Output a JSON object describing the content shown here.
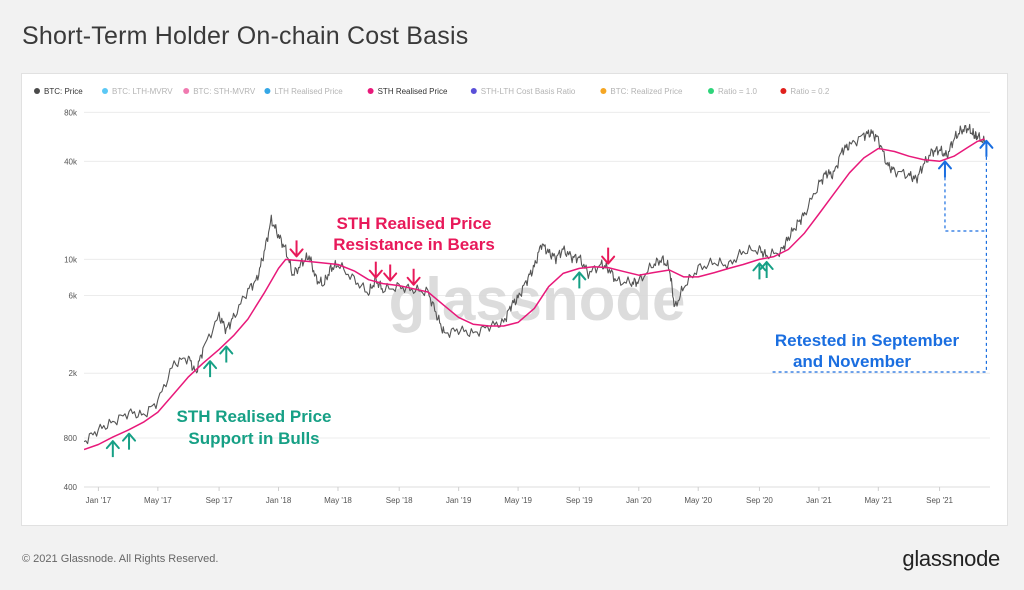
{
  "title": "Short-Term Holder On-chain Cost Basis",
  "footer": {
    "copyright": "© 2021 Glassnode. All Rights Reserved.",
    "logo": "glassnode"
  },
  "watermark": "glassnode",
  "chart_data": {
    "type": "line",
    "title": "Short-Term Holder On-chain Cost Basis",
    "y_scale": "log",
    "ylim": [
      400,
      90000
    ],
    "y_ticks": [
      {
        "value": 400,
        "label": "400"
      },
      {
        "value": 800,
        "label": "800"
      },
      {
        "value": 2000,
        "label": "2k"
      },
      {
        "value": 6000,
        "label": "6k"
      },
      {
        "value": 10000,
        "label": "10k"
      },
      {
        "value": 40000,
        "label": "40k"
      },
      {
        "value": 80000,
        "label": "80k"
      }
    ],
    "xlim": [
      2016.92,
      2021.95
    ],
    "x_ticks": [
      {
        "value": 2017.0,
        "label": "Jan '17"
      },
      {
        "value": 2017.33,
        "label": "May '17"
      },
      {
        "value": 2017.67,
        "label": "Sep '17"
      },
      {
        "value": 2018.0,
        "label": "Jan '18"
      },
      {
        "value": 2018.33,
        "label": "May '18"
      },
      {
        "value": 2018.67,
        "label": "Sep '18"
      },
      {
        "value": 2019.0,
        "label": "Jan '19"
      },
      {
        "value": 2019.33,
        "label": "May '19"
      },
      {
        "value": 2019.67,
        "label": "Sep '19"
      },
      {
        "value": 2020.0,
        "label": "Jan '20"
      },
      {
        "value": 2020.33,
        "label": "May '20"
      },
      {
        "value": 2020.67,
        "label": "Sep '20"
      },
      {
        "value": 2021.0,
        "label": "Jan '21"
      },
      {
        "value": 2021.33,
        "label": "May '21"
      },
      {
        "value": 2021.67,
        "label": "Sep '21"
      }
    ],
    "legend": [
      {
        "label": "BTC: Price",
        "color": "#4a4a4a",
        "active": true
      },
      {
        "label": "BTC: LTH-MVRV",
        "color": "#5bc8f5",
        "active": false
      },
      {
        "label": "BTC: STH-MVRV",
        "color": "#f07ab0",
        "active": false
      },
      {
        "label": "LTH Realised Price",
        "color": "#35a7e6",
        "active": false
      },
      {
        "label": "STH Realised Price",
        "color": "#e8197a",
        "active": true
      },
      {
        "label": "STH-LTH Cost Basis Ratio",
        "color": "#5a4fd8",
        "active": false
      },
      {
        "label": "BTC: Realized Price",
        "color": "#f5a623",
        "active": false
      },
      {
        "label": "Ratio = 1.0",
        "color": "#2ed47a",
        "active": false
      },
      {
        "label": "Ratio = 0.2",
        "color": "#e0201c",
        "active": false
      }
    ],
    "series": [
      {
        "name": "BTC: Price",
        "color": "#555555",
        "points": [
          [
            2016.92,
            760
          ],
          [
            2017.0,
            900
          ],
          [
            2017.08,
            1000
          ],
          [
            2017.17,
            1150
          ],
          [
            2017.25,
            1100
          ],
          [
            2017.33,
            1350
          ],
          [
            2017.42,
            2300
          ],
          [
            2017.5,
            2500
          ],
          [
            2017.54,
            2000
          ],
          [
            2017.58,
            2800
          ],
          [
            2017.67,
            4500
          ],
          [
            2017.71,
            3700
          ],
          [
            2017.75,
            4400
          ],
          [
            2017.83,
            6500
          ],
          [
            2017.88,
            7500
          ],
          [
            2017.92,
            11000
          ],
          [
            2017.96,
            17500
          ],
          [
            2018.0,
            14000
          ],
          [
            2018.04,
            11500
          ],
          [
            2018.08,
            8000
          ],
          [
            2018.13,
            9500
          ],
          [
            2018.17,
            10500
          ],
          [
            2018.21,
            7500
          ],
          [
            2018.25,
            7000
          ],
          [
            2018.29,
            8800
          ],
          [
            2018.33,
            9300
          ],
          [
            2018.42,
            7500
          ],
          [
            2018.5,
            6200
          ],
          [
            2018.54,
            7500
          ],
          [
            2018.58,
            6500
          ],
          [
            2018.67,
            6800
          ],
          [
            2018.75,
            6500
          ],
          [
            2018.83,
            6300
          ],
          [
            2018.88,
            4500
          ],
          [
            2018.92,
            3500
          ],
          [
            2019.0,
            3700
          ],
          [
            2019.08,
            3500
          ],
          [
            2019.17,
            3900
          ],
          [
            2019.25,
            4100
          ],
          [
            2019.29,
            5200
          ],
          [
            2019.33,
            5800
          ],
          [
            2019.38,
            7500
          ],
          [
            2019.42,
            9000
          ],
          [
            2019.46,
            12500
          ],
          [
            2019.5,
            11000
          ],
          [
            2019.54,
            10200
          ],
          [
            2019.58,
            11500
          ],
          [
            2019.63,
            10300
          ],
          [
            2019.67,
            10200
          ],
          [
            2019.72,
            8200
          ],
          [
            2019.79,
            9300
          ],
          [
            2019.83,
            8800
          ],
          [
            2019.88,
            7300
          ],
          [
            2019.96,
            7200
          ],
          [
            2020.0,
            7300
          ],
          [
            2020.08,
            9300
          ],
          [
            2020.13,
            10000
          ],
          [
            2020.17,
            8800
          ],
          [
            2020.2,
            5000
          ],
          [
            2020.25,
            6800
          ],
          [
            2020.33,
            8800
          ],
          [
            2020.42,
            9600
          ],
          [
            2020.5,
            9200
          ],
          [
            2020.58,
            11200
          ],
          [
            2020.67,
            11500
          ],
          [
            2020.71,
            10500
          ],
          [
            2020.79,
            11200
          ],
          [
            2020.83,
            13500
          ],
          [
            2020.88,
            16500
          ],
          [
            2020.92,
            19000
          ],
          [
            2021.0,
            29000
          ],
          [
            2021.04,
            34000
          ],
          [
            2021.08,
            33000
          ],
          [
            2021.13,
            47000
          ],
          [
            2021.17,
            50000
          ],
          [
            2021.25,
            58000
          ],
          [
            2021.29,
            60000
          ],
          [
            2021.33,
            55000
          ],
          [
            2021.38,
            38000
          ],
          [
            2021.42,
            35000
          ],
          [
            2021.5,
            33000
          ],
          [
            2021.54,
            31000
          ],
          [
            2021.58,
            38000
          ],
          [
            2021.63,
            46000
          ],
          [
            2021.67,
            47000
          ],
          [
            2021.71,
            43000
          ],
          [
            2021.75,
            55000
          ],
          [
            2021.79,
            62000
          ],
          [
            2021.83,
            64000
          ],
          [
            2021.86,
            58000
          ],
          [
            2021.88,
            57000
          ],
          [
            2021.92,
            52000
          ]
        ]
      },
      {
        "name": "STH Realised Price",
        "color": "#e8197a",
        "points": [
          [
            2016.92,
            680
          ],
          [
            2017.0,
            730
          ],
          [
            2017.08,
            810
          ],
          [
            2017.17,
            900
          ],
          [
            2017.25,
            1000
          ],
          [
            2017.33,
            1150
          ],
          [
            2017.42,
            1500
          ],
          [
            2017.5,
            1900
          ],
          [
            2017.58,
            2300
          ],
          [
            2017.67,
            2800
          ],
          [
            2017.75,
            3400
          ],
          [
            2017.83,
            4300
          ],
          [
            2017.92,
            6200
          ],
          [
            2018.0,
            8800
          ],
          [
            2018.04,
            10000
          ],
          [
            2018.08,
            9900
          ],
          [
            2018.17,
            9700
          ],
          [
            2018.25,
            9500
          ],
          [
            2018.33,
            9300
          ],
          [
            2018.42,
            8500
          ],
          [
            2018.5,
            7500
          ],
          [
            2018.58,
            7100
          ],
          [
            2018.67,
            6900
          ],
          [
            2018.75,
            6600
          ],
          [
            2018.83,
            6300
          ],
          [
            2018.92,
            5200
          ],
          [
            2019.0,
            4400
          ],
          [
            2019.08,
            4000
          ],
          [
            2019.17,
            3900
          ],
          [
            2019.25,
            3900
          ],
          [
            2019.33,
            4100
          ],
          [
            2019.42,
            5000
          ],
          [
            2019.5,
            6800
          ],
          [
            2019.58,
            8200
          ],
          [
            2019.67,
            8800
          ],
          [
            2019.75,
            9000
          ],
          [
            2019.83,
            8900
          ],
          [
            2019.92,
            8400
          ],
          [
            2020.0,
            8000
          ],
          [
            2020.08,
            8300
          ],
          [
            2020.17,
            8600
          ],
          [
            2020.25,
            7800
          ],
          [
            2020.33,
            7800
          ],
          [
            2020.42,
            8300
          ],
          [
            2020.5,
            8800
          ],
          [
            2020.58,
            9300
          ],
          [
            2020.67,
            10000
          ],
          [
            2020.75,
            10400
          ],
          [
            2020.83,
            11500
          ],
          [
            2020.92,
            14500
          ],
          [
            2021.0,
            19000
          ],
          [
            2021.08,
            25000
          ],
          [
            2021.17,
            34000
          ],
          [
            2021.25,
            42000
          ],
          [
            2021.33,
            48000
          ],
          [
            2021.42,
            46000
          ],
          [
            2021.5,
            43000
          ],
          [
            2021.58,
            41000
          ],
          [
            2021.67,
            40000
          ],
          [
            2021.75,
            43000
          ],
          [
            2021.83,
            49000
          ],
          [
            2021.88,
            53000
          ],
          [
            2021.92,
            55000
          ]
        ]
      }
    ],
    "annotations": [
      {
        "text_lines": [
          "STH Realised Price",
          "Support in Bulls"
        ],
        "color": "#16a085"
      },
      {
        "text_lines": [
          "STH Realised Price",
          "Resistance in Bears"
        ],
        "color": "#e8195a"
      },
      {
        "text_lines": [
          "Retested in September",
          "and November"
        ],
        "color": "#1a6ee0"
      }
    ],
    "arrows": {
      "support": [
        2017.08,
        2017.17,
        2017.62,
        2017.71,
        2019.67,
        2020.67,
        2020.71
      ],
      "resistance": [
        2018.1,
        2018.54,
        2018.62,
        2018.75,
        2019.83
      ],
      "retest": [
        2021.7,
        2021.93
      ]
    }
  }
}
